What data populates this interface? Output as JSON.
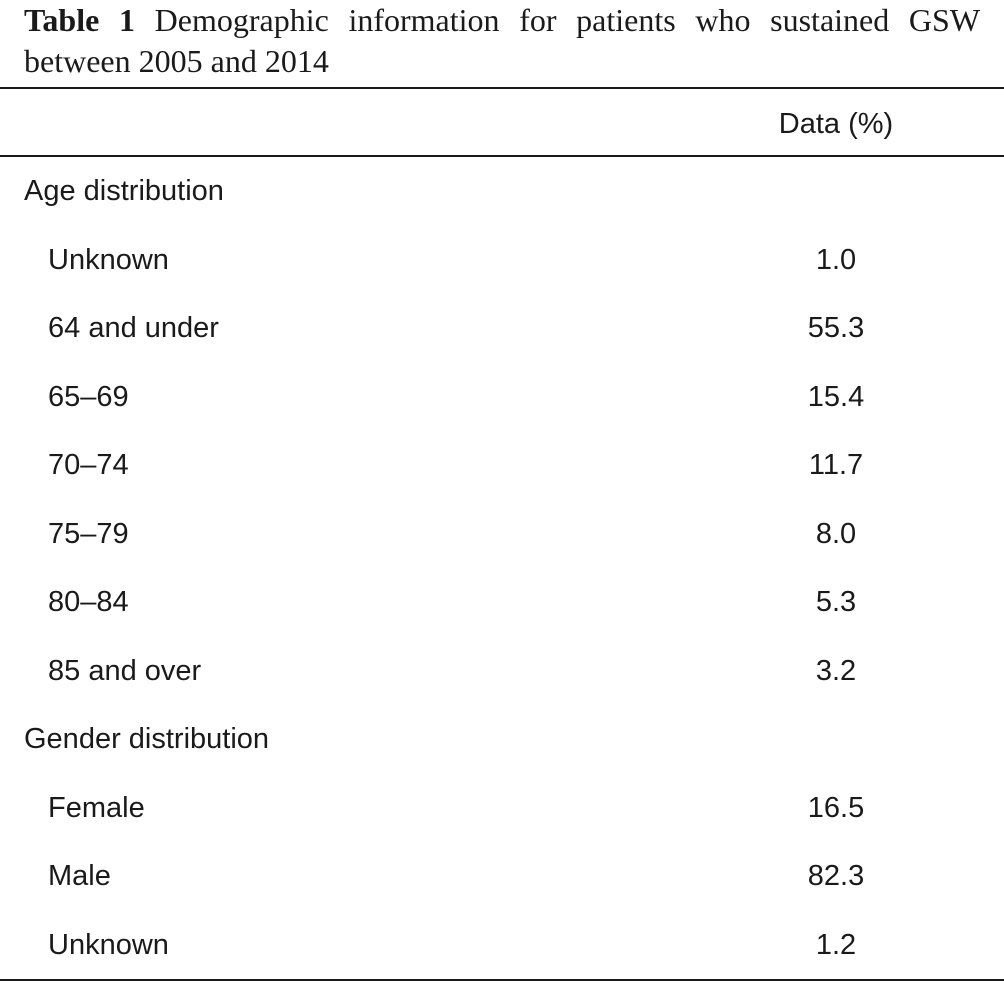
{
  "table": {
    "caption_label": "Table 1",
    "caption_text": "Demographic information for patients who sustained GSW between 2005 and 2014",
    "column_header": "Data (%)",
    "rows": [
      {
        "type": "section",
        "label": "Age distribution",
        "value": ""
      },
      {
        "type": "item",
        "label": "Unknown",
        "value": "1.0"
      },
      {
        "type": "item",
        "label": "64 and under",
        "value": "55.3"
      },
      {
        "type": "item",
        "label": "65–69",
        "value": "15.4"
      },
      {
        "type": "item",
        "label": "70–74",
        "value": "11.7"
      },
      {
        "type": "item",
        "label": "75–79",
        "value": "8.0"
      },
      {
        "type": "item",
        "label": "80–84",
        "value": "5.3"
      },
      {
        "type": "item",
        "label": "85 and over",
        "value": "3.2"
      },
      {
        "type": "section",
        "label": "Gender distribution",
        "value": ""
      },
      {
        "type": "item",
        "label": "Female",
        "value": "16.5"
      },
      {
        "type": "item",
        "label": "Male",
        "value": "82.3"
      },
      {
        "type": "item",
        "label": "Unknown",
        "value": "1.2"
      }
    ]
  }
}
